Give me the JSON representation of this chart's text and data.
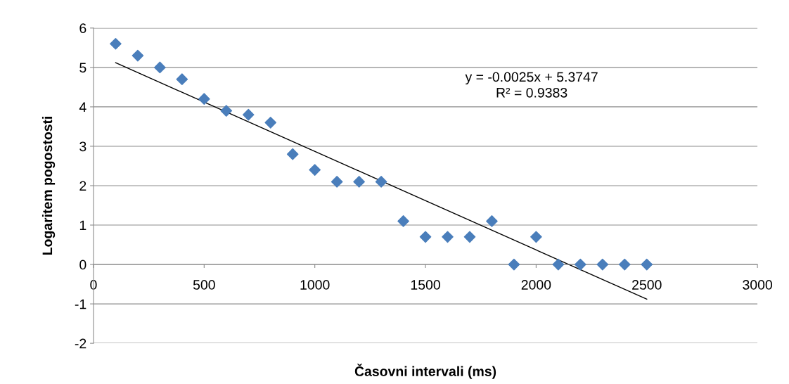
{
  "chart_data": {
    "type": "scatter",
    "xlabel": "Časovni intervali (ms)",
    "ylabel": "Logaritem pogostosti",
    "x": [
      100,
      200,
      300,
      400,
      500,
      600,
      700,
      800,
      900,
      1000,
      1100,
      1200,
      1300,
      1400,
      1500,
      1600,
      1700,
      1800,
      1900,
      2000,
      2100,
      2200,
      2300,
      2400,
      2500
    ],
    "series": [
      {
        "color": "#4a7ebb",
        "marker": "diamond",
        "values": [
          5.6,
          5.3,
          5.0,
          4.7,
          4.2,
          3.9,
          3.8,
          3.6,
          2.8,
          2.4,
          2.1,
          2.1,
          2.1,
          1.1,
          0.7,
          0.7,
          0.7,
          1.1,
          0,
          0.7,
          0,
          0,
          0,
          0,
          0
        ]
      },
      {
        "type": "line",
        "color": "#000000",
        "marker": "none",
        "x": [
          100,
          2500
        ],
        "values": [
          5.12,
          -0.88
        ]
      }
    ],
    "annotations": [
      "y = -0.0025x + 5.3747",
      "R² = 0.9383"
    ],
    "xlim": [
      0,
      3000
    ],
    "xticks": [
      0,
      500,
      1000,
      1500,
      2000,
      2500,
      3000
    ],
    "ylim": [
      -2,
      6
    ],
    "yticks": [
      -2,
      -1,
      0,
      1,
      2,
      3,
      4,
      5,
      6
    ],
    "grid": "y",
    "legend": false
  }
}
